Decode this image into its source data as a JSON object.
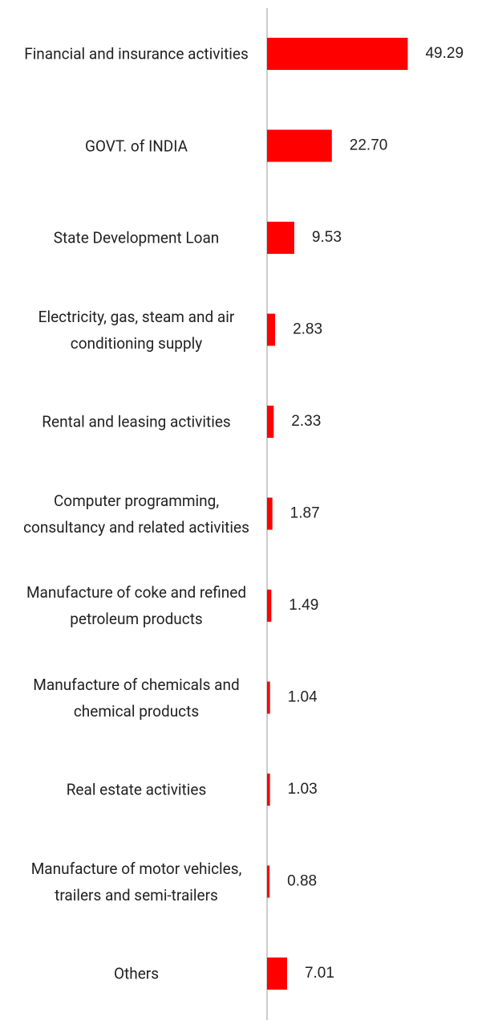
{
  "chart_data": {
    "type": "hbar",
    "categories": [
      "Financial and insurance activities",
      "GOVT. of INDIA",
      "State Development Loan",
      "Electricity, gas, steam and air conditioning supply",
      "Rental and leasing activities",
      "Computer programming, consultancy and related activities",
      "Manufacture of coke and refined petroleum products",
      "Manufacture of chemicals and chemical products",
      "Real estate activities",
      "Manufacture of motor vehicles, trailers and semi-trailers",
      "Others"
    ],
    "values": [
      49.29,
      22.7,
      9.53,
      2.83,
      2.33,
      1.87,
      1.49,
      1.04,
      1.03,
      0.88,
      7.01
    ],
    "value_labels": [
      "49.29",
      "22.70",
      "9.53",
      "2.83",
      "2.33",
      "1.87",
      "1.49",
      "1.04",
      "1.03",
      "0.88",
      "7.01"
    ],
    "color": "#ff0000",
    "xlim": [
      0,
      75
    ]
  }
}
